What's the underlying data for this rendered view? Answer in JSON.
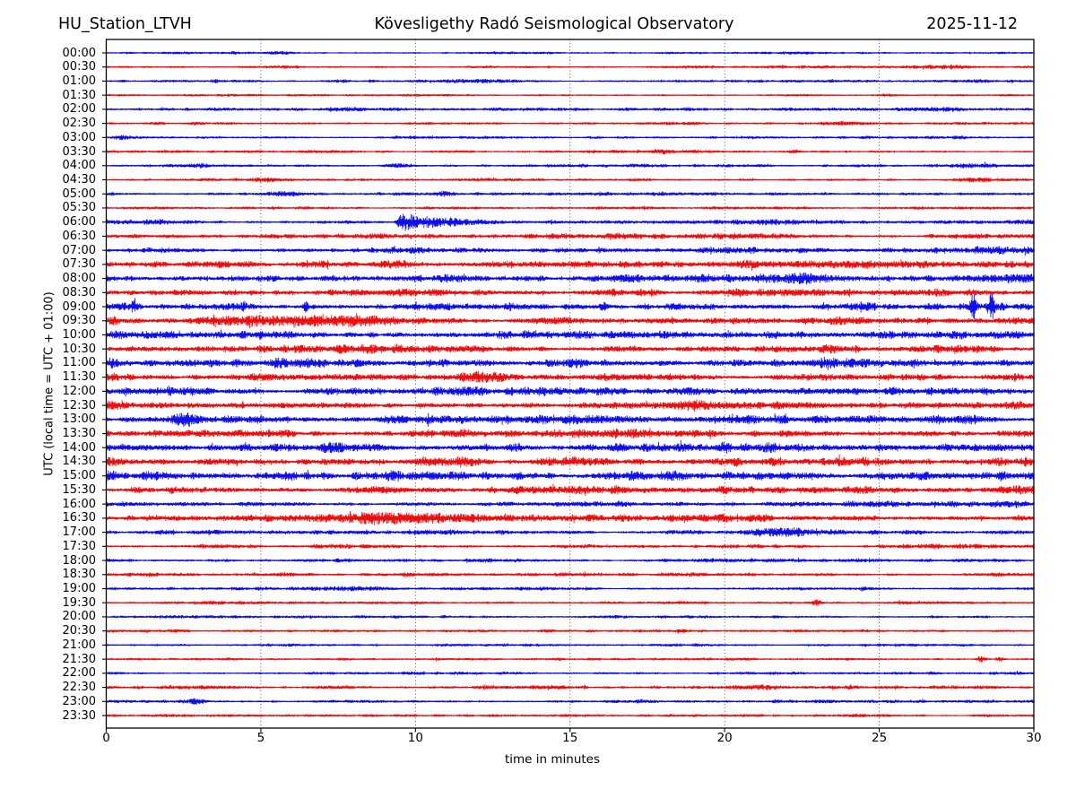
{
  "header": {
    "station": "HU_Station_LTVH",
    "title": "Kövesligethy Radó Seismological Observatory",
    "date": "2025-11-12"
  },
  "axes": {
    "xlabel": "time in minutes",
    "ylabel": "UTC (local time = UTC + 01:00)",
    "x_ticks": [
      0,
      5,
      10,
      15,
      20,
      25,
      30
    ],
    "x_range": [
      0,
      30
    ],
    "grid_minutes": [
      5,
      10,
      15,
      20,
      25
    ],
    "grid_style": "dotted-vertical"
  },
  "chart_data": {
    "type": "line",
    "variant": "helicorder-dayplot",
    "title": "Kövesligethy Radó Seismological Observatory",
    "xlabel": "time in minutes",
    "ylabel": "UTC (local time = UTC + 01:00)",
    "minutes_per_row": 30,
    "colors": {
      "b": "#0000ee",
      "r": "#ee0000"
    },
    "grid_color": "#444444",
    "axis_color": "#000000",
    "rows": [
      {
        "label": "00:00",
        "c": "b",
        "amp": 0.9,
        "ev": []
      },
      {
        "label": "00:30",
        "c": "r",
        "amp": 0.9,
        "ev": [
          {
            "t": 27.2,
            "w": 1.6,
            "a": 1.1
          },
          {
            "t": 12.2,
            "w": 0.8,
            "a": 0.5
          }
        ]
      },
      {
        "label": "01:00",
        "c": "b",
        "amp": 1.0,
        "ev": [
          {
            "t": 3.5,
            "w": 0.25,
            "a": 0.9
          },
          {
            "t": 7.6,
            "w": 0.3,
            "a": 0.8
          },
          {
            "t": 12.0,
            "w": 1.4,
            "a": 0.6
          }
        ]
      },
      {
        "label": "01:30",
        "c": "r",
        "amp": 0.9,
        "ev": [
          {
            "t": 25.3,
            "w": 0.5,
            "a": 0.7
          }
        ]
      },
      {
        "label": "02:00",
        "c": "b",
        "amp": 1.2,
        "ev": [
          {
            "t": 16.8,
            "w": 0.4,
            "a": 0.9
          },
          {
            "t": 26.9,
            "w": 1.3,
            "a": 1.1
          }
        ]
      },
      {
        "label": "02:30",
        "c": "r",
        "amp": 1.0,
        "ev": [
          {
            "t": 23.8,
            "w": 1.0,
            "a": 0.9
          }
        ]
      },
      {
        "label": "03:00",
        "c": "b",
        "amp": 1.0,
        "ev": [
          {
            "t": 0.6,
            "w": 0.5,
            "a": 1.1
          }
        ]
      },
      {
        "label": "03:30",
        "c": "r",
        "amp": 1.1,
        "ev": [
          {
            "t": 18.0,
            "w": 0.5,
            "a": 1.0
          },
          {
            "t": 19.0,
            "w": 0.4,
            "a": 0.9
          },
          {
            "t": 22.3,
            "w": 0.25,
            "a": 1.3
          }
        ]
      },
      {
        "label": "04:00",
        "c": "b",
        "amp": 1.2,
        "ev": [
          {
            "t": 3.0,
            "w": 0.5,
            "a": 1.2
          },
          {
            "t": 9.4,
            "w": 0.5,
            "a": 1.5
          },
          {
            "t": 28.1,
            "w": 1.5,
            "a": 0.9
          }
        ]
      },
      {
        "label": "04:30",
        "c": "r",
        "amp": 1.1,
        "ev": [
          {
            "t": 5.2,
            "w": 0.6,
            "a": 0.9
          },
          {
            "t": 28.2,
            "w": 0.5,
            "a": 0.9
          }
        ]
      },
      {
        "label": "05:00",
        "c": "b",
        "amp": 1.3,
        "ev": [
          {
            "t": 5.8,
            "w": 0.9,
            "a": 2.0
          },
          {
            "t": 10.9,
            "w": 0.5,
            "a": 1.1
          }
        ]
      },
      {
        "label": "05:30",
        "c": "r",
        "amp": 1.1,
        "ev": []
      },
      {
        "label": "06:00",
        "c": "b",
        "amp": 1.7,
        "ev": [
          {
            "t": 9.55,
            "type": "q",
            "a": 8.0,
            "dec": 0.9
          },
          {
            "t": 11.1,
            "w": 1.2,
            "a": 1.5
          },
          {
            "t": 20.0,
            "w": 8.0,
            "a": 0.5
          }
        ]
      },
      {
        "label": "06:30",
        "c": "r",
        "amp": 2.2,
        "ev": []
      },
      {
        "label": "07:00",
        "c": "b",
        "amp": 2.3,
        "ev": [
          {
            "t": 19.5,
            "w": 1.0,
            "a": 1.2
          },
          {
            "t": 29.0,
            "w": 1.4,
            "a": 1.3
          }
        ]
      },
      {
        "label": "07:30",
        "c": "r",
        "amp": 2.6,
        "ev": [
          {
            "t": 9.35,
            "w": 0.8,
            "a": 3.2
          },
          {
            "t": 6.8,
            "w": 0.7,
            "a": 1.2
          }
        ]
      },
      {
        "label": "08:00",
        "c": "b",
        "amp": 2.8,
        "ev": [
          {
            "t": 22.5,
            "w": 1.4,
            "a": 1.8
          },
          {
            "t": 29.3,
            "w": 1.1,
            "a": 1.8
          }
        ]
      },
      {
        "label": "08:30",
        "c": "r",
        "amp": 2.6,
        "ev": [
          {
            "t": 16.4,
            "w": 0.4,
            "a": 1.8
          },
          {
            "t": 17.6,
            "w": 0.4,
            "a": 1.4
          },
          {
            "t": 20.5,
            "w": 0.8,
            "a": 1.0
          }
        ]
      },
      {
        "label": "09:00",
        "c": "b",
        "amp": 2.7,
        "ev": [
          {
            "t": 0.9,
            "w": 0.12,
            "a": 4.0
          },
          {
            "t": 4.45,
            "w": 0.12,
            "a": 3.2
          },
          {
            "t": 6.45,
            "w": 0.12,
            "a": 3.4
          },
          {
            "t": 10.05,
            "w": 0.12,
            "a": 3.2
          },
          {
            "t": 16.1,
            "w": 0.15,
            "a": 2.4
          },
          {
            "t": 28.05,
            "w": 0.14,
            "a": 10.0
          },
          {
            "t": 28.62,
            "w": 0.14,
            "a": 10.0
          }
        ]
      },
      {
        "label": "09:30",
        "c": "r",
        "amp": 2.7,
        "ev": [
          {
            "t": 6.5,
            "w": 4.2,
            "a": 2.8
          },
          {
            "t": 7.8,
            "w": 1.2,
            "a": 1.5
          }
        ]
      },
      {
        "label": "10:00",
        "c": "b",
        "amp": 3.2,
        "ev": []
      },
      {
        "label": "10:30",
        "c": "r",
        "amp": 2.9,
        "ev": [
          {
            "t": 23.6,
            "w": 0.8,
            "a": 1.3
          },
          {
            "t": 26.7,
            "w": 1.6,
            "a": 1.3
          }
        ]
      },
      {
        "label": "11:00",
        "c": "b",
        "amp": 3.2,
        "ev": [
          {
            "t": 0.15,
            "w": 0.4,
            "a": 3.0
          }
        ]
      },
      {
        "label": "11:30",
        "c": "r",
        "amp": 2.8,
        "ev": [
          {
            "t": 12.2,
            "w": 1.0,
            "a": 2.8
          }
        ]
      },
      {
        "label": "12:00",
        "c": "b",
        "amp": 3.0,
        "ev": [
          {
            "t": 2.7,
            "w": 0.6,
            "a": 1.3
          }
        ]
      },
      {
        "label": "12:30",
        "c": "r",
        "amp": 2.8,
        "ev": [
          {
            "t": 19.0,
            "w": 0.8,
            "a": 3.2
          }
        ]
      },
      {
        "label": "13:00",
        "c": "b",
        "amp": 3.2,
        "ev": [
          {
            "t": 2.45,
            "w": 0.5,
            "a": 3.4
          },
          {
            "t": 27.0,
            "w": 2.0,
            "a": 1.0
          }
        ]
      },
      {
        "label": "13:30",
        "c": "r",
        "amp": 3.0,
        "ev": []
      },
      {
        "label": "14:00",
        "c": "b",
        "amp": 3.4,
        "ev": [
          {
            "t": 28.7,
            "w": 2.2,
            "a": 1.2
          }
        ]
      },
      {
        "label": "14:30",
        "c": "r",
        "amp": 3.2,
        "ev": [
          {
            "t": 11.0,
            "w": 2.0,
            "a": 1.2
          }
        ]
      },
      {
        "label": "15:00",
        "c": "b",
        "amp": 3.6,
        "ev": []
      },
      {
        "label": "15:30",
        "c": "r",
        "amp": 2.9,
        "ev": []
      },
      {
        "label": "16:00",
        "c": "b",
        "amp": 2.2,
        "ev": []
      },
      {
        "label": "16:30",
        "c": "r",
        "amp": 2.4,
        "ev": [
          {
            "t": 9.2,
            "w": 4.5,
            "a": 2.6
          },
          {
            "t": 8.7,
            "w": 1.2,
            "a": 1.2
          }
        ]
      },
      {
        "label": "17:00",
        "c": "b",
        "amp": 1.7,
        "ev": [
          {
            "t": 21.8,
            "w": 1.5,
            "a": 2.6
          }
        ]
      },
      {
        "label": "17:30",
        "c": "r",
        "amp": 1.5,
        "ev": [
          {
            "t": 27.8,
            "w": 1.0,
            "a": 0.8
          }
        ]
      },
      {
        "label": "18:00",
        "c": "b",
        "amp": 1.3,
        "ev": []
      },
      {
        "label": "18:30",
        "c": "r",
        "amp": 1.4,
        "ev": [
          {
            "t": 1.5,
            "w": 0.3,
            "a": 1.0
          },
          {
            "t": 28.8,
            "w": 0.8,
            "a": 0.8
          }
        ]
      },
      {
        "label": "19:00",
        "c": "b",
        "amp": 1.2,
        "ev": [
          {
            "t": 7.8,
            "w": 1.5,
            "a": 1.6
          }
        ]
      },
      {
        "label": "19:30",
        "c": "r",
        "amp": 1.1,
        "ev": [
          {
            "t": 23.0,
            "w": 0.22,
            "a": 2.4
          }
        ]
      },
      {
        "label": "20:00",
        "c": "b",
        "amp": 1.1,
        "ev": []
      },
      {
        "label": "20:30",
        "c": "r",
        "amp": 1.1,
        "ev": [
          {
            "t": 22.5,
            "w": 0.4,
            "a": 0.8
          }
        ]
      },
      {
        "label": "21:00",
        "c": "b",
        "amp": 1.0,
        "ev": [
          {
            "t": 11.0,
            "w": 1.0,
            "a": 0.5
          }
        ]
      },
      {
        "label": "21:30",
        "c": "r",
        "amp": 0.95,
        "ev": [
          {
            "t": 28.3,
            "w": 0.18,
            "a": 2.6
          },
          {
            "t": 28.9,
            "w": 0.15,
            "a": 1.2
          }
        ]
      },
      {
        "label": "22:00",
        "c": "b",
        "amp": 1.05,
        "ev": [
          {
            "t": 20.8,
            "w": 0.6,
            "a": 0.6
          }
        ]
      },
      {
        "label": "22:30",
        "c": "r",
        "amp": 1.2,
        "ev": [
          {
            "t": 21.0,
            "w": 1.6,
            "a": 1.3
          }
        ]
      },
      {
        "label": "23:00",
        "c": "b",
        "amp": 1.2,
        "ev": [
          {
            "t": 2.85,
            "w": 0.6,
            "a": 1.5
          }
        ]
      },
      {
        "label": "23:30",
        "c": "r",
        "amp": 1.0,
        "ev": [
          {
            "t": 2.2,
            "w": 1.0,
            "a": 0.6
          },
          {
            "t": 28.5,
            "w": 0.5,
            "a": 0.6
          }
        ]
      }
    ]
  }
}
